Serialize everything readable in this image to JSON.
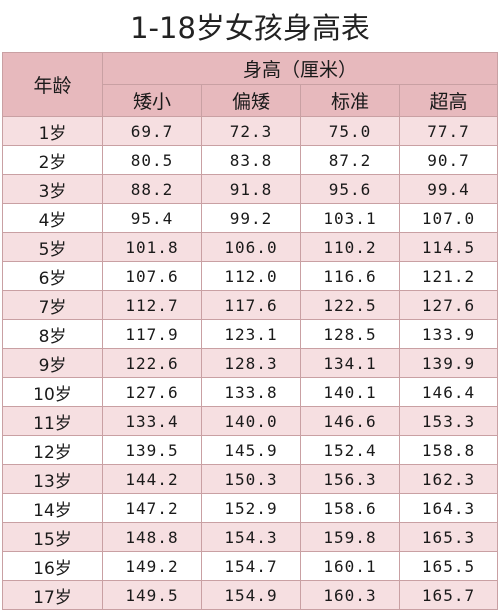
{
  "title": "1-18岁女孩身高表",
  "header": {
    "age": "年龄",
    "group": "身高（厘米）",
    "columns": [
      "矮小",
      "偏矮",
      "标准",
      "超高"
    ]
  },
  "rows": [
    {
      "age": "1岁",
      "values": [
        "69.7",
        "72.3",
        "75.0",
        "77.7"
      ]
    },
    {
      "age": "2岁",
      "values": [
        "80.5",
        "83.8",
        "87.2",
        "90.7"
      ]
    },
    {
      "age": "3岁",
      "values": [
        "88.2",
        "91.8",
        "95.6",
        "99.4"
      ]
    },
    {
      "age": "4岁",
      "values": [
        "95.4",
        "99.2",
        "103.1",
        "107.0"
      ]
    },
    {
      "age": "5岁",
      "values": [
        "101.8",
        "106.0",
        "110.2",
        "114.5"
      ]
    },
    {
      "age": "6岁",
      "values": [
        "107.6",
        "112.0",
        "116.6",
        "121.2"
      ]
    },
    {
      "age": "7岁",
      "values": [
        "112.7",
        "117.6",
        "122.5",
        "127.6"
      ]
    },
    {
      "age": "8岁",
      "values": [
        "117.9",
        "123.1",
        "128.5",
        "133.9"
      ]
    },
    {
      "age": "9岁",
      "values": [
        "122.6",
        "128.3",
        "134.1",
        "139.9"
      ]
    },
    {
      "age": "10岁",
      "values": [
        "127.6",
        "133.8",
        "140.1",
        "146.4"
      ]
    },
    {
      "age": "11岁",
      "values": [
        "133.4",
        "140.0",
        "146.6",
        "153.3"
      ]
    },
    {
      "age": "12岁",
      "values": [
        "139.5",
        "145.9",
        "152.4",
        "158.8"
      ]
    },
    {
      "age": "13岁",
      "values": [
        "144.2",
        "150.3",
        "156.3",
        "162.3"
      ]
    },
    {
      "age": "14岁",
      "values": [
        "147.2",
        "152.9",
        "158.6",
        "164.3"
      ]
    },
    {
      "age": "15岁",
      "values": [
        "148.8",
        "154.3",
        "159.8",
        "165.3"
      ]
    },
    {
      "age": "16岁",
      "values": [
        "149.2",
        "154.7",
        "160.1",
        "165.5"
      ]
    },
    {
      "age": "17岁",
      "values": [
        "149.5",
        "154.9",
        "160.3",
        "165.7"
      ]
    }
  ]
}
